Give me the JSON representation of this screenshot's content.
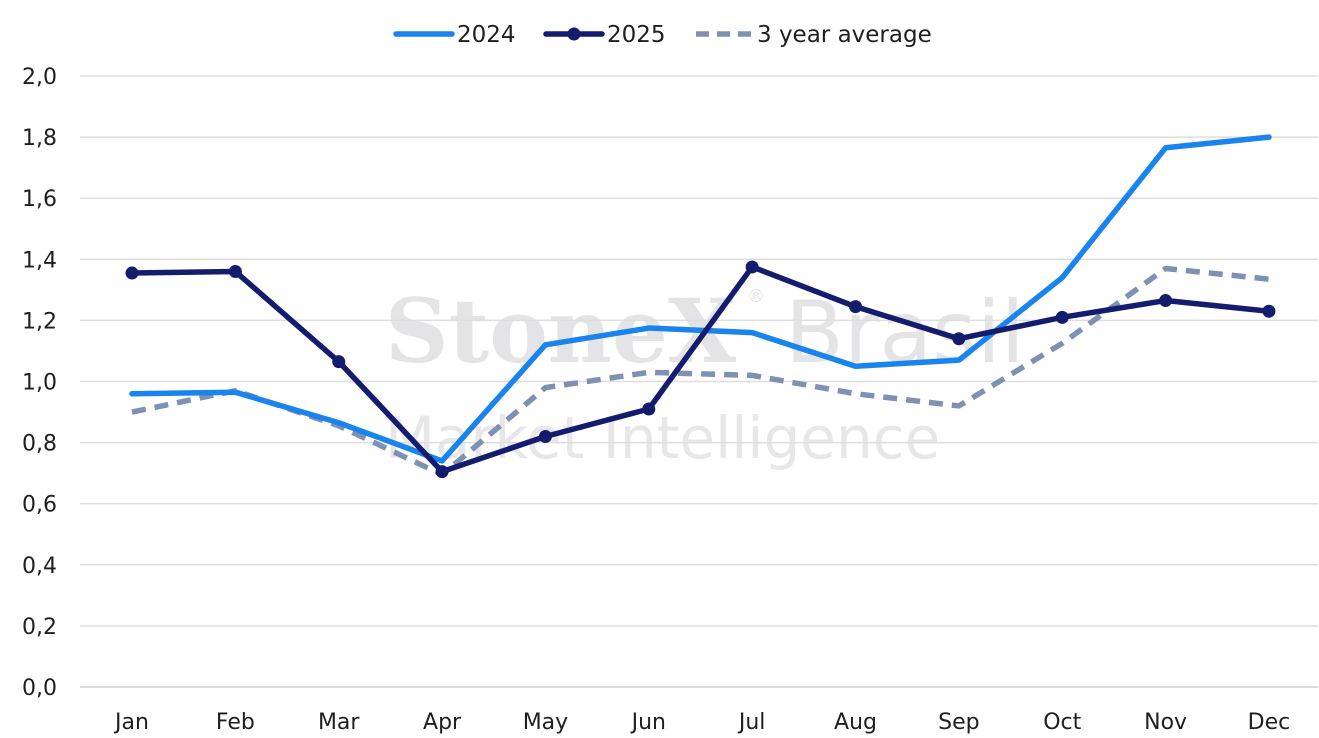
{
  "chart_data": {
    "type": "line",
    "categories": [
      "Jan",
      "Feb",
      "Mar",
      "Apr",
      "May",
      "Jun",
      "Jul",
      "Aug",
      "Sep",
      "Oct",
      "Nov",
      "Dec"
    ],
    "ylim": [
      0,
      2.0
    ],
    "y_ticks": [
      "0,0",
      "0,2",
      "0,4",
      "0,6",
      "0,8",
      "1,0",
      "1,2",
      "1,4",
      "1,6",
      "1,8",
      "2,0"
    ],
    "grid": "horizontal",
    "legend_position": "top-center",
    "series": [
      {
        "name": "2024",
        "color": "#1a84ee",
        "style": "solid",
        "markers": false,
        "values": [
          0.96,
          0.965,
          0.865,
          0.74,
          1.12,
          1.175,
          1.16,
          1.05,
          1.07,
          1.34,
          1.765,
          1.8
        ]
      },
      {
        "name": "2025",
        "color": "#141c6e",
        "style": "solid",
        "markers": true,
        "values": [
          1.355,
          1.36,
          1.065,
          0.705,
          0.82,
          0.91,
          1.375,
          1.245,
          1.14,
          1.21,
          1.265,
          1.23
        ]
      },
      {
        "name": "3 year average",
        "color": "#7e91b3",
        "style": "dashed",
        "markers": false,
        "values": [
          0.9,
          0.97,
          0.855,
          0.695,
          0.98,
          1.03,
          1.02,
          0.96,
          0.92,
          1.125,
          1.37,
          1.335
        ]
      }
    ]
  },
  "watermark": {
    "brand": "StoneX",
    "brand_suffix": "Brasil",
    "registered_mark": "®",
    "tagline": "Market Intelligence"
  }
}
